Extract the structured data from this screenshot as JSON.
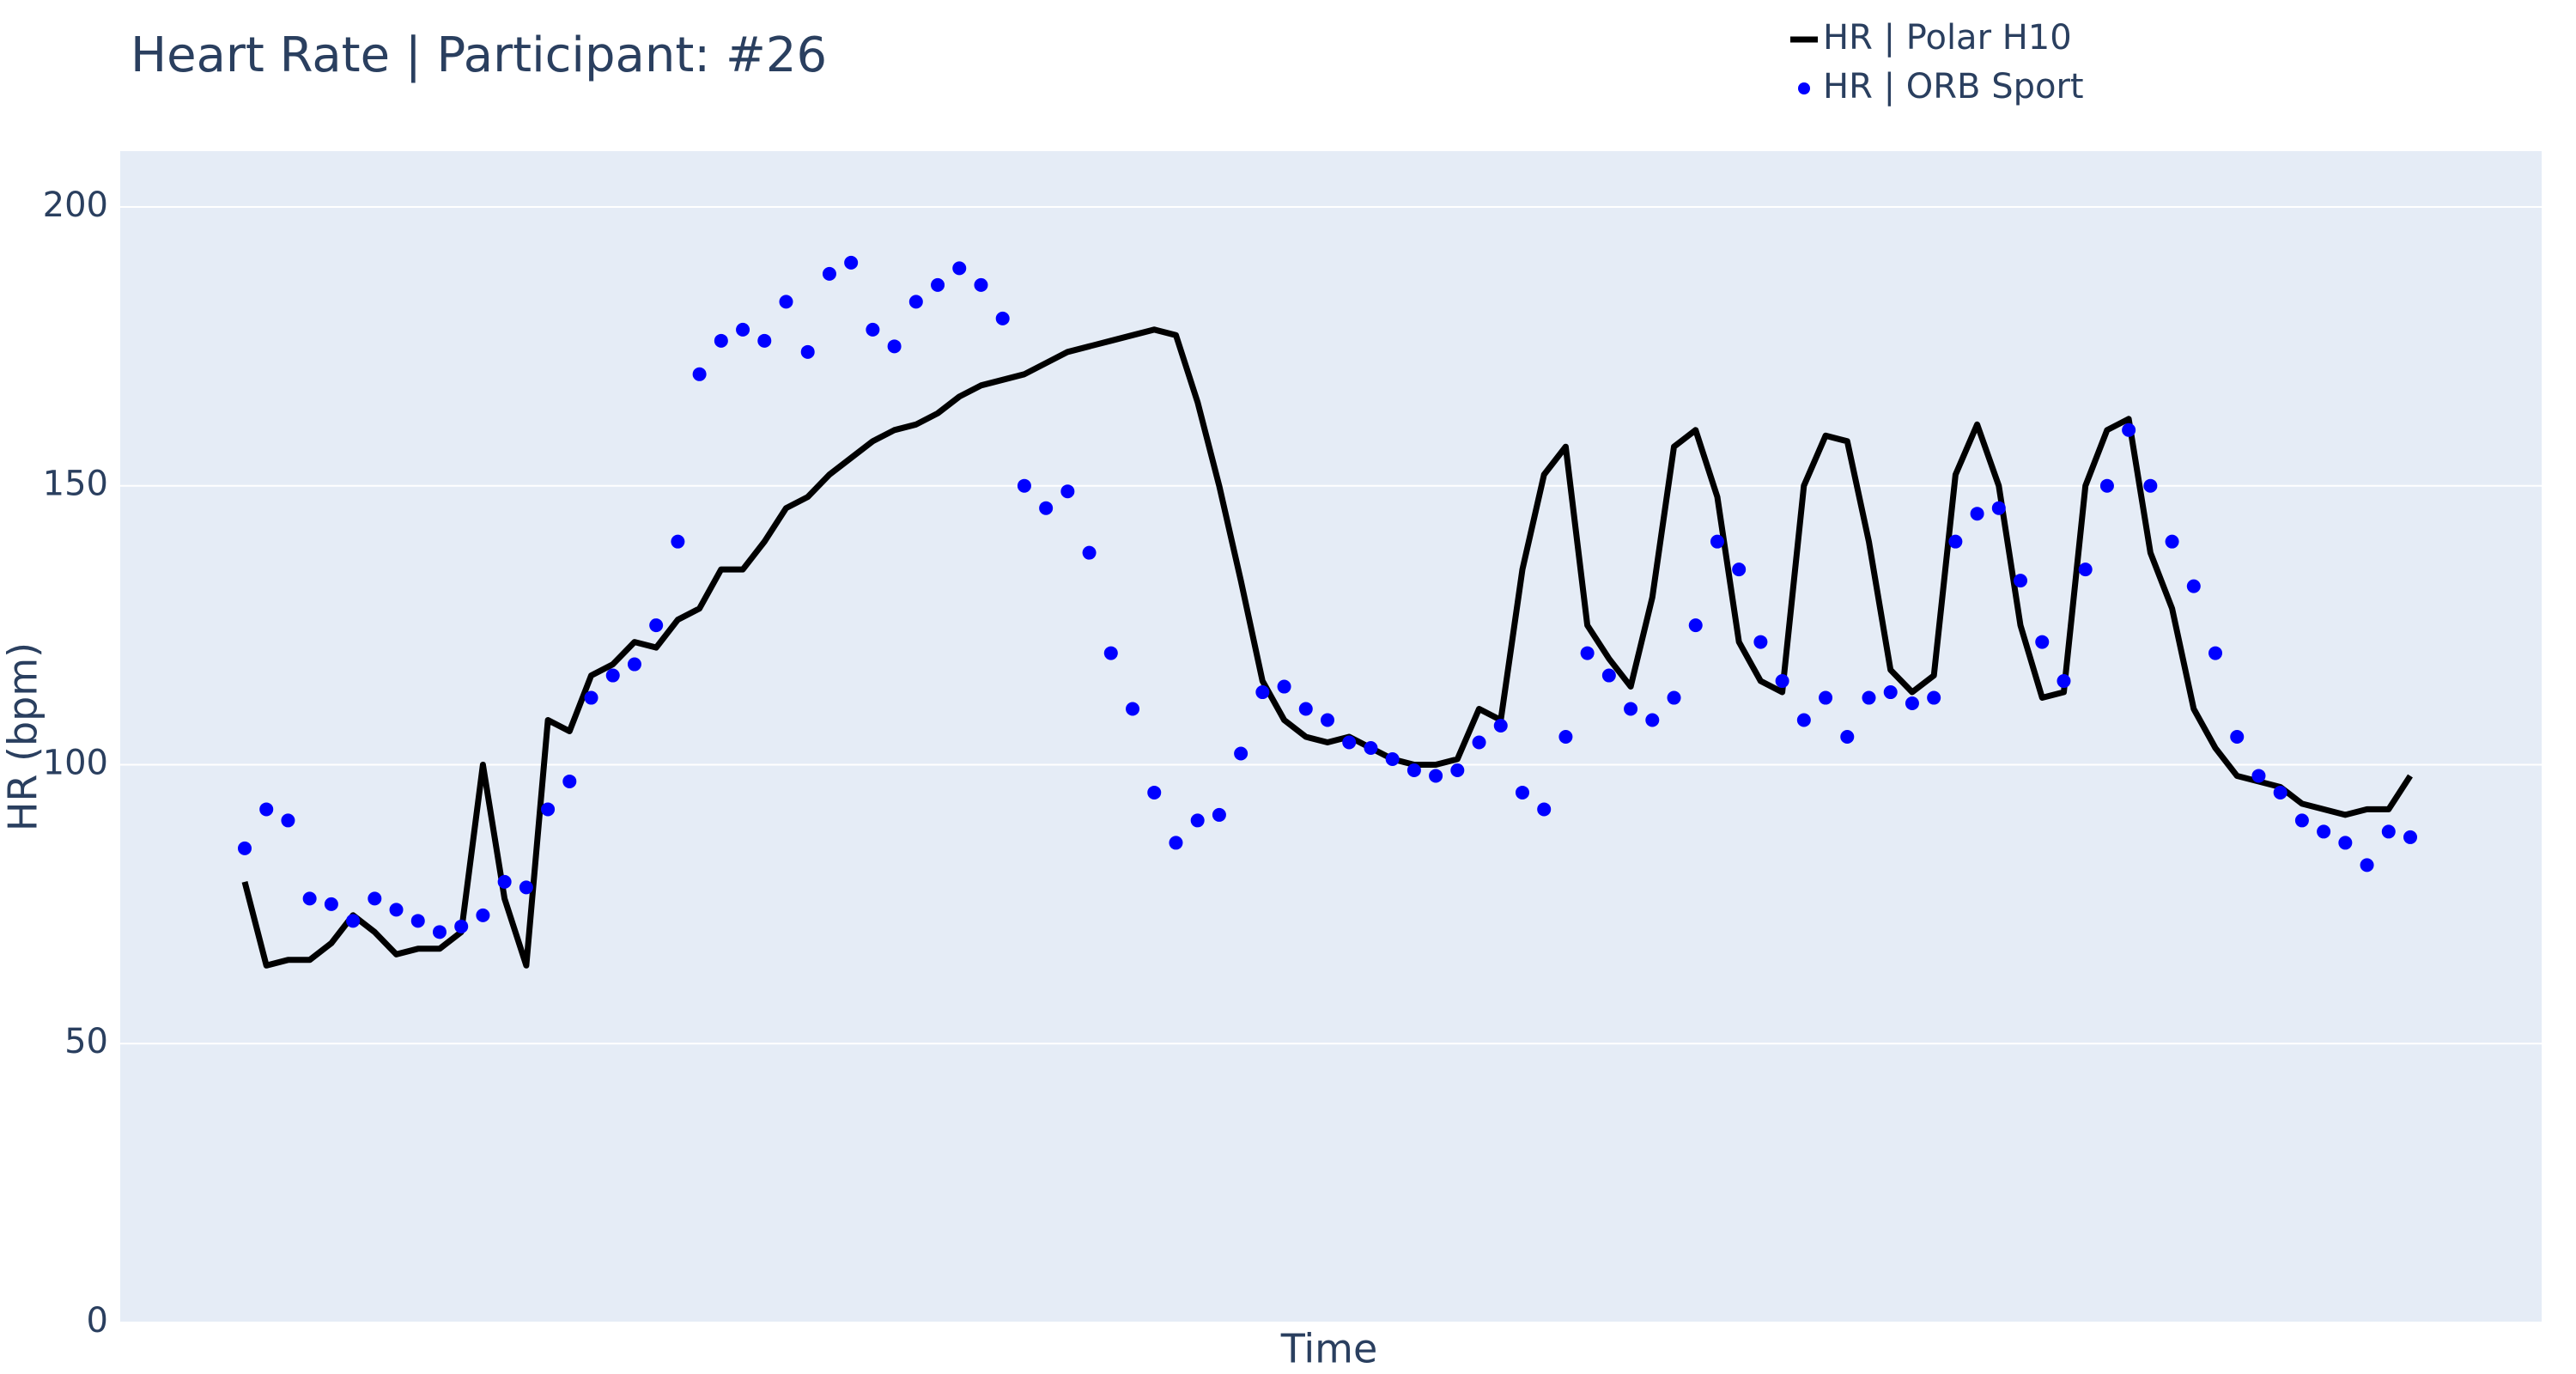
{
  "chart_data": {
    "type": "line_scatter",
    "title": "Heart Rate | Participant: #26",
    "x_label": "Time",
    "y_label": "HR (bpm)",
    "ylim": [
      0,
      210
    ],
    "yticks": [
      0,
      50,
      100,
      150,
      200
    ],
    "grid": true,
    "series": [
      {
        "name": "HR | Polar H10",
        "color": "#000000",
        "mode": "line",
        "values": [
          79,
          64,
          65,
          65,
          68,
          73,
          70,
          66,
          67,
          67,
          70,
          100,
          76,
          64,
          108,
          106,
          116,
          118,
          122,
          121,
          126,
          128,
          135,
          135,
          140,
          146,
          148,
          152,
          155,
          158,
          160,
          161,
          163,
          166,
          168,
          169,
          170,
          172,
          174,
          175,
          176,
          177,
          178,
          177,
          165,
          150,
          133,
          115,
          108,
          105,
          104,
          105,
          103,
          101,
          100,
          100,
          101,
          110,
          108,
          135,
          152,
          157,
          125,
          119,
          114,
          130,
          157,
          160,
          148,
          122,
          115,
          113,
          150,
          159,
          158,
          140,
          117,
          113,
          116,
          152,
          161,
          150,
          125,
          112,
          113,
          150,
          160,
          162,
          138,
          128,
          110,
          103,
          98,
          97,
          96,
          93,
          92,
          91,
          92,
          92,
          98
        ]
      },
      {
        "name": "HR | ORB Sport",
        "color": "#0000ff",
        "mode": "markers",
        "values": [
          85,
          92,
          90,
          76,
          75,
          72,
          76,
          74,
          72,
          70,
          71,
          73,
          79,
          78,
          92,
          97,
          112,
          116,
          118,
          125,
          140,
          170,
          176,
          178,
          176,
          183,
          174,
          188,
          190,
          178,
          175,
          183,
          186,
          189,
          186,
          180,
          150,
          146,
          149,
          138,
          120,
          110,
          95,
          86,
          90,
          91,
          102,
          113,
          114,
          110,
          108,
          104,
          103,
          101,
          99,
          98,
          99,
          104,
          107,
          95,
          92,
          105,
          120,
          116,
          110,
          108,
          112,
          125,
          140,
          135,
          122,
          115,
          108,
          112,
          105,
          112,
          113,
          111,
          112,
          140,
          145,
          146,
          133,
          122,
          115,
          135,
          150,
          160,
          150,
          140,
          132,
          120,
          105,
          98,
          95,
          90,
          88,
          86,
          82,
          88,
          87
        ]
      }
    ]
  }
}
